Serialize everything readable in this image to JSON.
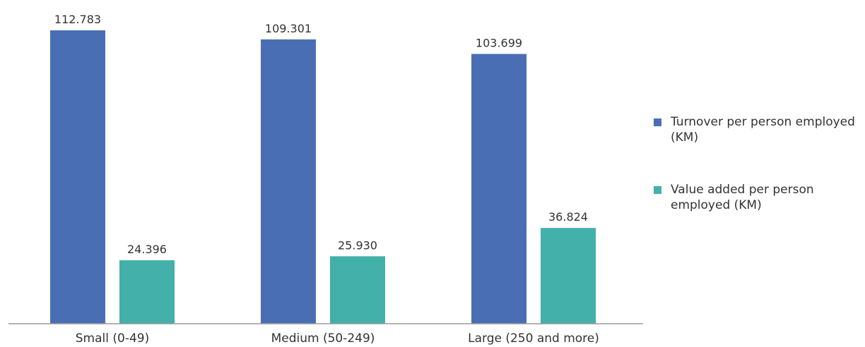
{
  "chart_data": {
    "type": "bar",
    "categories": [
      "Small (0-49)",
      "Medium (50-249)",
      "Large (250 and more)"
    ],
    "series": [
      {
        "name": "Turnover per person employed (KM)",
        "values": [
          112.783,
          109.301,
          103.699
        ],
        "labels": [
          "112.783",
          "109.301",
          "103.699"
        ],
        "color": "#4a6eb4"
      },
      {
        "name": "Value added per person employed (KM)",
        "values": [
          24.396,
          25.93,
          36.824
        ],
        "labels": [
          "24.396",
          "25.930",
          "36.824"
        ],
        "color": "#43b0a9"
      }
    ],
    "ylim": [
      0,
      120
    ],
    "grid": false,
    "legend": "right",
    "axis_color": "#9a9a9a"
  }
}
